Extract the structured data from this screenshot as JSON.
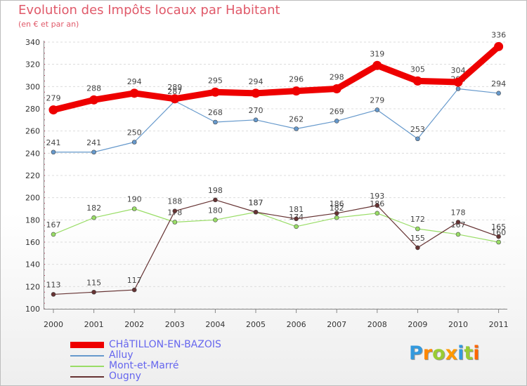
{
  "chart_data": {
    "type": "line",
    "title": "Evolution des Impôts locaux par Habitant",
    "subtitle": "(en € et par an)",
    "x": [
      "2000",
      "2001",
      "2002",
      "2003",
      "2004",
      "2005",
      "2006",
      "2007",
      "2008",
      "2009",
      "2010",
      "2011"
    ],
    "ylim": [
      100,
      340
    ],
    "yticks": [
      100,
      120,
      140,
      160,
      180,
      200,
      220,
      240,
      260,
      280,
      300,
      320,
      340
    ],
    "grid": true,
    "legend_position": "bottom-left",
    "series": [
      {
        "name": "CHâTILLON-EN-BAZOIS",
        "color": "#ee0000",
        "values": [
          279,
          288,
          294,
          289,
          295,
          294,
          296,
          298,
          319,
          305,
          304,
          336
        ]
      },
      {
        "name": "Alluy",
        "color": "#6699cc",
        "values": [
          241,
          241,
          250,
          287,
          268,
          270,
          262,
          269,
          279,
          253,
          298,
          294
        ]
      },
      {
        "name": "Mont-et-Marré",
        "color": "#99dd66",
        "values": [
          167,
          182,
          190,
          178,
          180,
          187,
          174,
          182,
          186,
          172,
          167,
          160
        ]
      },
      {
        "name": "Ougny",
        "color": "#663333",
        "values": [
          113,
          115,
          117,
          188,
          198,
          187,
          181,
          186,
          193,
          155,
          178,
          165
        ]
      }
    ]
  },
  "logo": {
    "letters": [
      "P",
      "r",
      "o",
      "x",
      "i",
      "t",
      "i"
    ],
    "colors": [
      "#3399dd",
      "#ff8800",
      "#99cc33",
      "#ff9900",
      "#3399dd",
      "#99cc33",
      "#ff6600"
    ]
  }
}
